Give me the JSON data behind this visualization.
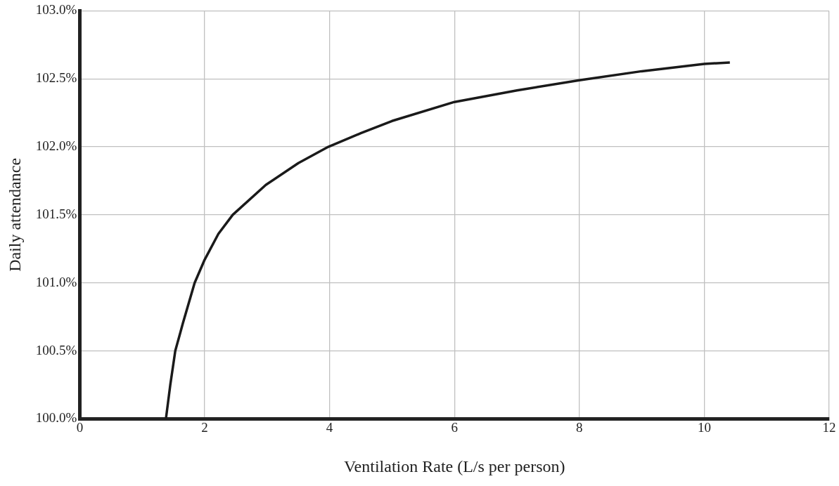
{
  "chart_data": {
    "type": "line",
    "xlabel": "Ventilation Rate (L/s per person)",
    "ylabel": "Daily attendance",
    "x": [
      1.38,
      1.45,
      1.53,
      1.65,
      1.84,
      2,
      2.22,
      2.45,
      2.98,
      3.5,
      3.98,
      4.5,
      5,
      6,
      7,
      8,
      9,
      10,
      10.41
    ],
    "series": [
      {
        "color": "#1a1a1a",
        "values": [
          100,
          100.25,
          100.5,
          100.7,
          101.0,
          101.17,
          101.36,
          101.5,
          101.72,
          101.88,
          102.0,
          102.1,
          102.19,
          102.33,
          102.415,
          102.49,
          102.556,
          102.61,
          102.62
        ]
      }
    ],
    "xlim": [
      0,
      12
    ],
    "xticks": [
      0,
      2,
      4,
      6,
      8,
      10,
      12
    ],
    "ylim": [
      100,
      103
    ],
    "yticks": [
      {
        "value": 100,
        "label": "100.0%"
      },
      {
        "value": 100.5,
        "label": "100.5%"
      },
      {
        "value": 101,
        "label": "101.0%"
      },
      {
        "value": 101.5,
        "label": "101.5%"
      },
      {
        "value": 102,
        "label": "102.0%"
      },
      {
        "value": 102.5,
        "label": "102.5%"
      },
      {
        "value": 103,
        "label": "103.0%"
      }
    ],
    "grid": true,
    "legend": false
  }
}
